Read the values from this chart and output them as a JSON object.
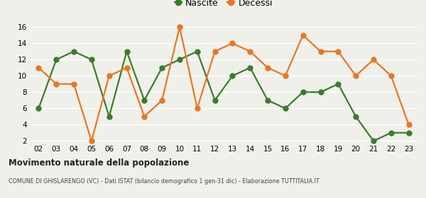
{
  "years": [
    "02",
    "03",
    "04",
    "05",
    "06",
    "07",
    "08",
    "09",
    "10",
    "11",
    "12",
    "13",
    "14",
    "15",
    "16",
    "17",
    "18",
    "19",
    "20",
    "21",
    "22",
    "23"
  ],
  "nascite": [
    6,
    12,
    13,
    12,
    5,
    13,
    7,
    11,
    12,
    13,
    7,
    10,
    11,
    7,
    6,
    8,
    8,
    9,
    5,
    2,
    3,
    3
  ],
  "decessi": [
    11,
    9,
    9,
    2,
    10,
    11,
    5,
    7,
    16,
    6,
    13,
    14,
    13,
    11,
    10,
    15,
    13,
    13,
    10,
    12,
    10,
    4
  ],
  "nascite_color": "#3a7d2c",
  "decessi_color": "#e87722",
  "background_color": "#f0f0eb",
  "grid_color": "#ffffff",
  "ylim_min": 2,
  "ylim_max": 16,
  "yticks": [
    2,
    4,
    6,
    8,
    10,
    12,
    14,
    16
  ],
  "title": "Movimento naturale della popolazione",
  "subtitle": "COMUNE DI GHISLARENGO (VC) - Dati ISTAT (bilancio demografico 1 gen-31 dic) - Elaborazione TUTTITALIA.IT",
  "legend_nascite": "Nascite",
  "legend_decessi": "Decessi",
  "marker_size": 5,
  "line_width": 1.6
}
